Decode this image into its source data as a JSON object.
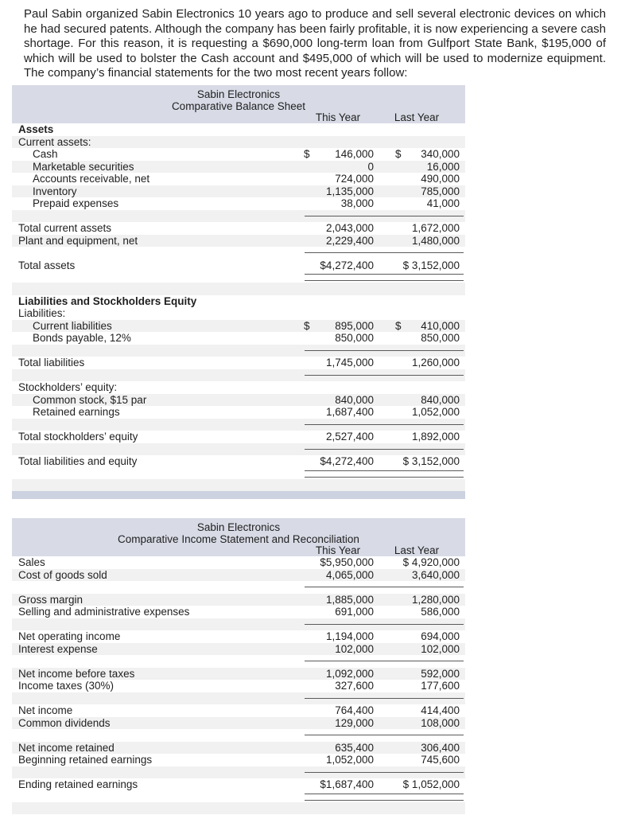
{
  "intro": {
    "text": "Paul Sabin organized Sabin Electronics 10 years ago to produce and sell several electronic devices on which he had secured patents. Although the company has been fairly profitable, it is now experiencing a severe cash shortage. For this reason, it is requesting a $690,000 long-term loan from Gulfport State Bank, $195,000 of which will be used to bolster the Cash account and $495,000 of which will be used to modernize equipment. The company’s financial statements for the two most recent years follow:"
  },
  "colors": {
    "header_band": "#d8dbe6",
    "footer_bar": "#ccd2e0",
    "row_stripe": "#f1f1f1",
    "rule_line": "#5a5a5a"
  },
  "balance_sheet": {
    "title_line1": "Sabin Electronics",
    "title_line2": "Comparative Balance Sheet",
    "col_this_year": "This Year",
    "col_last_year": "Last Year",
    "rows": [
      {
        "t": "r",
        "label": "Assets",
        "b": 1,
        "s": 0
      },
      {
        "t": "r",
        "label": "Current assets:",
        "s": 1
      },
      {
        "t": "r",
        "label": "Cash",
        "ind": 1,
        "c1": "$",
        "v1": "146,000",
        "c2": "$",
        "v2": "340,000",
        "s": 0
      },
      {
        "t": "r",
        "label": "Marketable securities",
        "ind": 1,
        "v1": "0",
        "v2": "16,000",
        "s": 1
      },
      {
        "t": "r",
        "label": "Accounts receivable, net",
        "ind": 1,
        "v1": "724,000",
        "v2": "490,000",
        "s": 0
      },
      {
        "t": "r",
        "label": "Inventory",
        "ind": 1,
        "v1": "1,135,000",
        "v2": "785,000",
        "s": 1
      },
      {
        "t": "r",
        "label": "Prepaid expenses",
        "ind": 1,
        "v1": "38,000",
        "v2": "41,000",
        "s": 0
      },
      {
        "t": "rule",
        "s": 1
      },
      {
        "t": "r",
        "label": "Total current assets",
        "v1": "2,043,000",
        "v2": "1,672,000",
        "s": 0
      },
      {
        "t": "r",
        "label": "Plant and equipment, net",
        "v1": "2,229,400",
        "v2": "1,480,000",
        "s": 1
      },
      {
        "t": "rule",
        "s": 0
      },
      {
        "t": "r",
        "label": "Total assets",
        "v1": "$4,272,400",
        "v2": "$ 3,152,000",
        "s": 0
      },
      {
        "t": "dbl",
        "s": 0
      },
      {
        "t": "gap",
        "s": 1
      },
      {
        "t": "r",
        "label": "Liabilities and Stockholders Equity",
        "b": 1,
        "s": 0
      },
      {
        "t": "r",
        "label": "Liabilities:",
        "s": 0
      },
      {
        "t": "r",
        "label": "Current liabilities",
        "ind": 1,
        "c1": "$",
        "v1": "895,000",
        "c2": "$",
        "v2": "410,000",
        "s": 1
      },
      {
        "t": "r",
        "label": "Bonds payable, 12%",
        "ind": 1,
        "v1": "850,000",
        "v2": "850,000",
        "s": 0
      },
      {
        "t": "rule",
        "s": 1
      },
      {
        "t": "r",
        "label": "Total liabilities",
        "v1": "1,745,000",
        "v2": "1,260,000",
        "s": 0
      },
      {
        "t": "rule",
        "s": 1
      },
      {
        "t": "r",
        "label": "Stockholders’ equity:",
        "s": 0
      },
      {
        "t": "r",
        "label": "Common stock, $15 par",
        "ind": 1,
        "v1": "840,000",
        "v2": "840,000",
        "s": 1
      },
      {
        "t": "r",
        "label": "Retained earnings",
        "ind": 1,
        "v1": "1,687,400",
        "v2": "1,052,000",
        "s": 0
      },
      {
        "t": "rule",
        "s": 1
      },
      {
        "t": "r",
        "label": "Total stockholders’ equity",
        "v1": "2,527,400",
        "v2": "1,892,000",
        "s": 0
      },
      {
        "t": "rule",
        "s": 1
      },
      {
        "t": "r",
        "label": "Total liabilities and equity",
        "v1": "$4,272,400",
        "v2": "$ 3,152,000",
        "s": 0
      },
      {
        "t": "dbl",
        "s": 0
      },
      {
        "t": "gap",
        "s": 1
      },
      {
        "t": "bar"
      }
    ]
  },
  "income_statement": {
    "title_line1": "Sabin Electronics",
    "title_line2": "Comparative Income Statement and Reconciliation",
    "col_this_year": "This Year",
    "col_last_year": "Last Year",
    "rows": [
      {
        "t": "r",
        "label": "Sales",
        "v1": "$5,950,000",
        "v2": "$ 4,920,000",
        "s": 0
      },
      {
        "t": "r",
        "label": "Cost of goods sold",
        "v1": "4,065,000",
        "v2": "3,640,000",
        "s": 1
      },
      {
        "t": "rule",
        "s": 0
      },
      {
        "t": "r",
        "label": "Gross margin",
        "v1": "1,885,000",
        "v2": "1,280,000",
        "s": 1
      },
      {
        "t": "r",
        "label": "Selling and administrative expenses",
        "v1": "691,000",
        "v2": "586,000",
        "s": 0
      },
      {
        "t": "rule",
        "s": 1
      },
      {
        "t": "r",
        "label": "Net operating income",
        "v1": "1,194,000",
        "v2": "694,000",
        "s": 0
      },
      {
        "t": "r",
        "label": "Interest expense",
        "v1": "102,000",
        "v2": "102,000",
        "s": 1
      },
      {
        "t": "rule",
        "s": 0
      },
      {
        "t": "r",
        "label": "Net income before taxes",
        "v1": "1,092,000",
        "v2": "592,000",
        "s": 1
      },
      {
        "t": "r",
        "label": "Income taxes (30%)",
        "v1": "327,600",
        "v2": "177,600",
        "s": 0
      },
      {
        "t": "rule",
        "s": 1
      },
      {
        "t": "r",
        "label": "Net income",
        "v1": "764,400",
        "v2": "414,400",
        "s": 0
      },
      {
        "t": "r",
        "label": "Common dividends",
        "v1": "129,000",
        "v2": "108,000",
        "s": 1
      },
      {
        "t": "rule",
        "s": 0
      },
      {
        "t": "r",
        "label": "Net income retained",
        "v1": "635,400",
        "v2": "306,400",
        "s": 1
      },
      {
        "t": "r",
        "label": "Beginning retained earnings",
        "v1": "1,052,000",
        "v2": "745,600",
        "s": 0
      },
      {
        "t": "rule",
        "s": 1
      },
      {
        "t": "r",
        "label": "Ending retained earnings",
        "v1": "$1,687,400",
        "v2": "$ 1,052,000",
        "s": 0
      },
      {
        "t": "dbl",
        "s": 0
      },
      {
        "t": "gap",
        "s": 1
      }
    ]
  }
}
